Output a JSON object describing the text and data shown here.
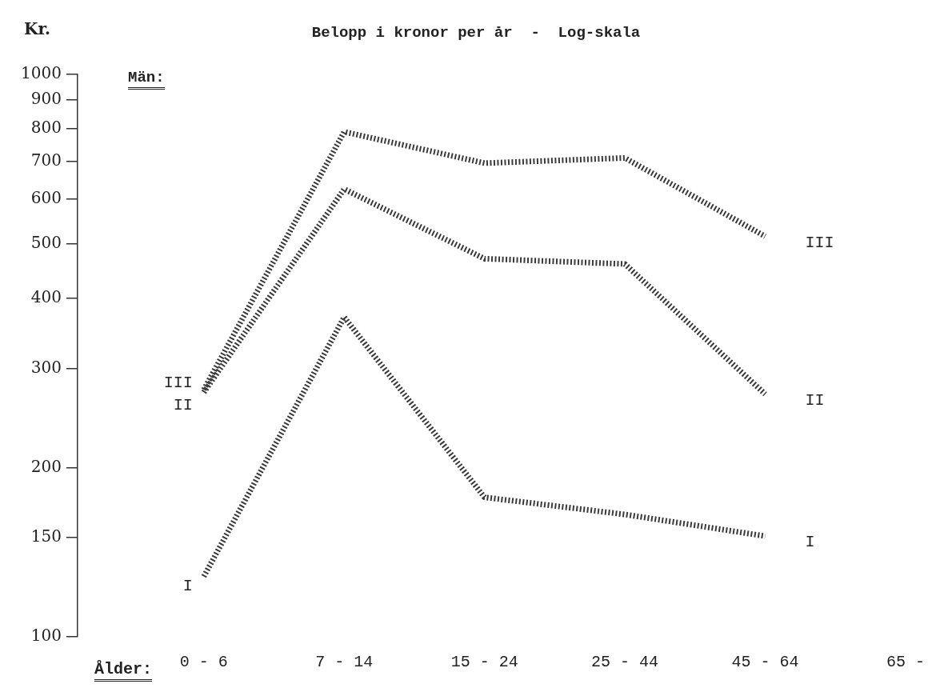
{
  "chart_data": {
    "type": "line",
    "title": "Belopp i kronor per år  -  Log-skala",
    "subtitle": "Män:",
    "xlabel": "Ålder:",
    "ylabel": "Kr.",
    "categories": [
      "0 - 6",
      "7 - 14",
      "15 - 24",
      "25 - 44",
      "45 - 64",
      "65 -"
    ],
    "series": [
      {
        "name": "III",
        "color": "#3a3a3a",
        "values": [
          275,
          790,
          695,
          710,
          515,
          null
        ]
      },
      {
        "name": "II",
        "color": "#3a3a3a",
        "values": [
          272,
          625,
          470,
          460,
          270,
          null
        ]
      },
      {
        "name": "I",
        "color": "#3a3a3a",
        "values": [
          128,
          370,
          177,
          165,
          151,
          null
        ]
      }
    ],
    "log": "y",
    "ylim": [
      100,
      1000
    ],
    "yticks": [
      100,
      150,
      200,
      300,
      400,
      500,
      600,
      700,
      800,
      900,
      1000
    ],
    "grid": false,
    "legend": false,
    "marker": "none",
    "line_style": "dashed"
  }
}
